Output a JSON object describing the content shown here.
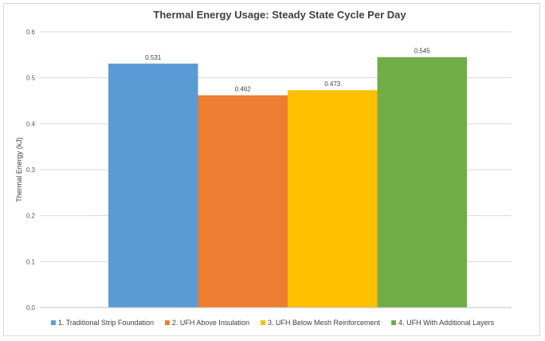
{
  "chart_data": {
    "type": "bar",
    "title": "Thermal Energy Usage: Steady State Cycle Per Day",
    "xlabel": "",
    "ylabel": "Thermal Energy (kJ)",
    "ylim": [
      0,
      0.6
    ],
    "yticks": [
      0.0,
      0.1,
      0.2,
      0.3,
      0.4,
      0.5,
      0.6
    ],
    "ytick_labels": [
      "0.0",
      "0.1",
      "0.2",
      "0.3",
      "0.4",
      "0.5",
      "0.6"
    ],
    "grid": true,
    "legend_position": "bottom",
    "series": [
      {
        "name": "1. Traditional Strip Foundation",
        "value": 0.531,
        "label": "0.531",
        "color": "#5b9bd5"
      },
      {
        "name": "2. UFH Above Insulation",
        "value": 0.462,
        "label": "0.462",
        "color": "#ed7d31"
      },
      {
        "name": "3. UFH Below Mesh Reinforcement",
        "value": 0.473,
        "label": "0.473",
        "color": "#ffc000"
      },
      {
        "name": "4. UFH With Additional Layers",
        "value": 0.545,
        "label": "0.545",
        "color": "#70ad47"
      }
    ]
  }
}
